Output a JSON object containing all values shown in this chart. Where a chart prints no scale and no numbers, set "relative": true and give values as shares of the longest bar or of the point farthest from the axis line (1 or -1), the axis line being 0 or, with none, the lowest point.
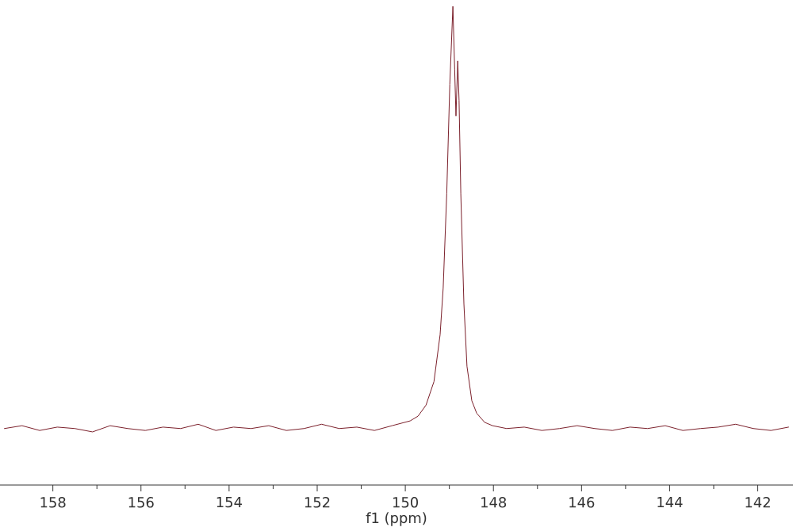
{
  "chart_data": {
    "type": "line",
    "relative": true,
    "xlabel": "f1 (ppm)",
    "xlim": [
      159.2,
      141.2
    ],
    "xticks": [
      158,
      156,
      154,
      152,
      150,
      148,
      146,
      144,
      142
    ],
    "series": [
      {
        "color": "#7a1f2a",
        "x": [
          159.1,
          158.7,
          158.3,
          157.9,
          157.5,
          157.1,
          156.7,
          156.3,
          155.9,
          155.5,
          155.1,
          154.7,
          154.3,
          153.9,
          153.5,
          153.1,
          152.7,
          152.3,
          151.9,
          151.5,
          151.1,
          150.7,
          150.3,
          149.89,
          149.71,
          149.53,
          149.35,
          149.21,
          149.14,
          149.06,
          148.99,
          148.92,
          148.88,
          148.85,
          148.81,
          148.78,
          148.74,
          148.67,
          148.6,
          148.49,
          148.38,
          148.2,
          148.02,
          147.7,
          147.3,
          146.9,
          146.5,
          146.1,
          145.7,
          145.3,
          144.9,
          144.5,
          144.1,
          143.7,
          143.3,
          142.9,
          142.5,
          142.1,
          141.7,
          141.3
        ],
        "values": [
          0.118,
          0.124,
          0.114,
          0.121,
          0.118,
          0.111,
          0.124,
          0.118,
          0.114,
          0.121,
          0.118,
          0.127,
          0.114,
          0.121,
          0.118,
          0.124,
          0.114,
          0.118,
          0.127,
          0.118,
          0.121,
          0.114,
          0.124,
          0.134,
          0.144,
          0.167,
          0.216,
          0.314,
          0.412,
          0.608,
          0.837,
          1,
          0.869,
          0.771,
          0.886,
          0.804,
          0.608,
          0.379,
          0.248,
          0.176,
          0.15,
          0.131,
          0.124,
          0.118,
          0.121,
          0.114,
          0.118,
          0.124,
          0.118,
          0.114,
          0.121,
          0.118,
          0.124,
          0.114,
          0.118,
          0.121,
          0.127,
          0.118,
          0.114,
          0.121
        ]
      }
    ]
  }
}
